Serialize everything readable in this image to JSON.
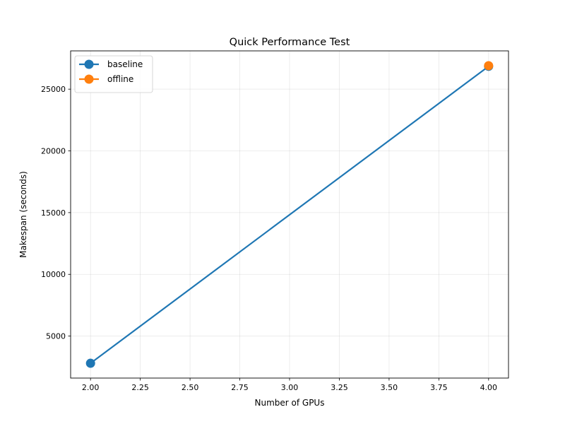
{
  "chart_data": {
    "type": "line",
    "title": "Quick Performance Test",
    "xlabel": "Number of GPUs",
    "ylabel": "Makespan (seconds)",
    "xlim": [
      1.9,
      4.1
    ],
    "ylim": [
      1600,
      28100
    ],
    "xticks": [
      2.0,
      2.25,
      2.5,
      2.75,
      3.0,
      3.25,
      3.5,
      3.75,
      4.0
    ],
    "xtick_labels": [
      "2.00",
      "2.25",
      "2.50",
      "2.75",
      "3.00",
      "3.25",
      "3.50",
      "3.75",
      "4.00"
    ],
    "yticks": [
      5000,
      10000,
      15000,
      20000,
      25000
    ],
    "ytick_labels": [
      "5000",
      "10000",
      "15000",
      "20000",
      "25000"
    ],
    "grid": true,
    "legend_position": "upper-left",
    "series": [
      {
        "name": "baseline",
        "color": "#1f77b4",
        "x": [
          2,
          4
        ],
        "y": [
          2800,
          26850
        ]
      },
      {
        "name": "offline",
        "color": "#ff7f0e",
        "x": [
          4
        ],
        "y": [
          26900
        ]
      }
    ]
  }
}
